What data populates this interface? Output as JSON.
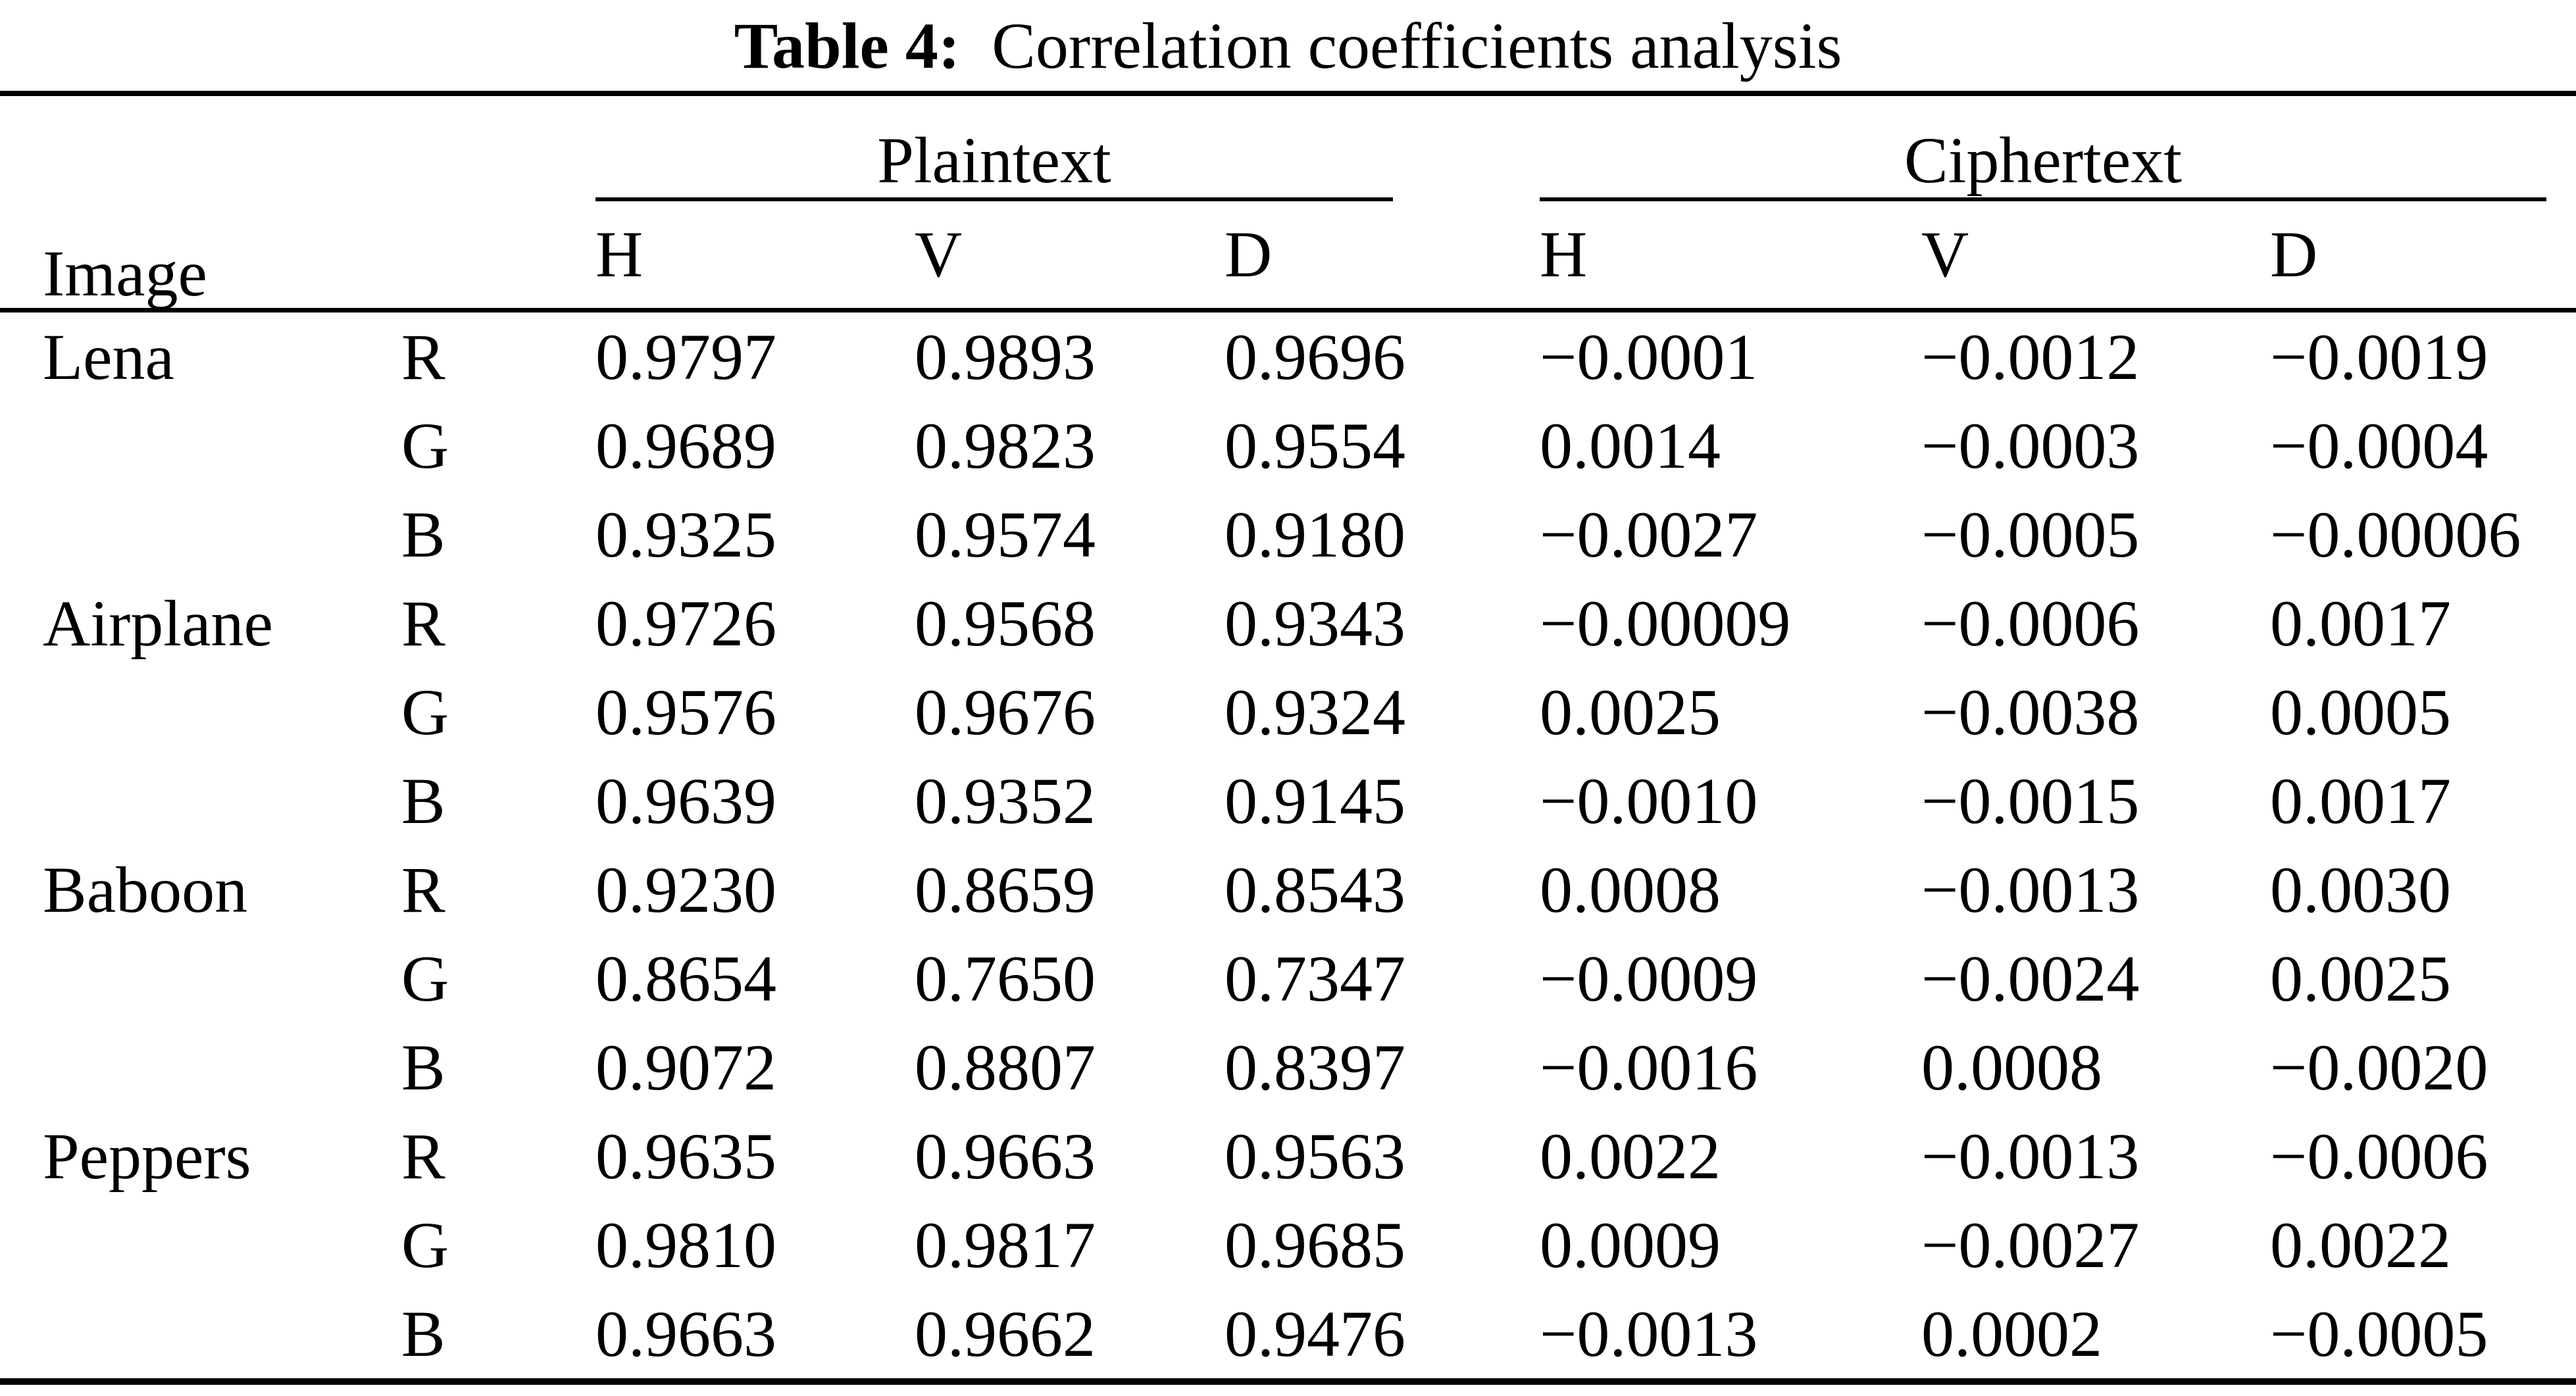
{
  "table": {
    "caption": {
      "label": "Table 4:",
      "text": "Correlation coefficients analysis"
    },
    "headers": {
      "image": "Image",
      "groups": [
        {
          "label": "Plaintext",
          "cols": [
            "H",
            "V",
            "D"
          ]
        },
        {
          "label": "Ciphertext",
          "cols": [
            "H",
            "V",
            "D"
          ]
        }
      ]
    },
    "rows": [
      {
        "image": "Lena",
        "channel": "R",
        "values": [
          "0.9797",
          "0.9893",
          "0.9696",
          "−0.0001",
          "−0.0012",
          "−0.0019"
        ]
      },
      {
        "image": "",
        "channel": "G",
        "values": [
          "0.9689",
          "0.9823",
          "0.9554",
          "0.0014",
          "−0.0003",
          "−0.0004"
        ]
      },
      {
        "image": "",
        "channel": "B",
        "values": [
          "0.9325",
          "0.9574",
          "0.9180",
          "−0.0027",
          "−0.0005",
          "−0.00006"
        ]
      },
      {
        "image": "Airplane",
        "channel": "R",
        "values": [
          "0.9726",
          "0.9568",
          "0.9343",
          "−0.00009",
          "−0.0006",
          "0.0017"
        ]
      },
      {
        "image": "",
        "channel": "G",
        "values": [
          "0.9576",
          "0.9676",
          "0.9324",
          "0.0025",
          "−0.0038",
          "0.0005"
        ]
      },
      {
        "image": "",
        "channel": "B",
        "values": [
          "0.9639",
          "0.9352",
          "0.9145",
          "−0.0010",
          "−0.0015",
          "0.0017"
        ]
      },
      {
        "image": "Baboon",
        "channel": "R",
        "values": [
          "0.9230",
          "0.8659",
          "0.8543",
          "0.0008",
          "−0.0013",
          "0.0030"
        ]
      },
      {
        "image": "",
        "channel": "G",
        "values": [
          "0.8654",
          "0.7650",
          "0.7347",
          "−0.0009",
          "−0.0024",
          "0.0025"
        ]
      },
      {
        "image": "",
        "channel": "B",
        "values": [
          "0.9072",
          "0.8807",
          "0.8397",
          "−0.0016",
          "0.0008",
          "−0.0020"
        ]
      },
      {
        "image": "Peppers",
        "channel": "R",
        "values": [
          "0.9635",
          "0.9663",
          "0.9563",
          "0.0022",
          "−0.0013",
          "−0.0006"
        ]
      },
      {
        "image": "",
        "channel": "G",
        "values": [
          "0.9810",
          "0.9817",
          "0.9685",
          "0.0009",
          "−0.0027",
          "0.0022"
        ]
      },
      {
        "image": "",
        "channel": "B",
        "values": [
          "0.9663",
          "0.9662",
          "0.9476",
          "−0.0013",
          "0.0002",
          "−0.0005"
        ]
      }
    ]
  }
}
